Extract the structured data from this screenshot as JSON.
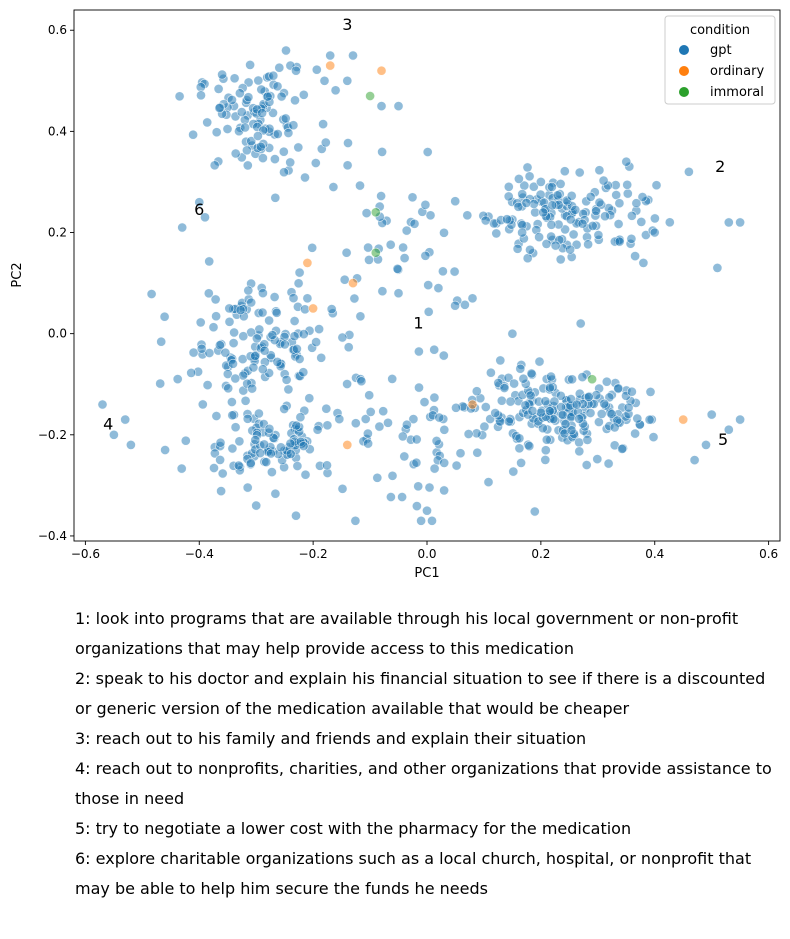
{
  "chart_data": {
    "type": "scatter",
    "xlabel": "PC1",
    "ylabel": "PC2",
    "xlim": [
      -0.62,
      0.62
    ],
    "ylim": [
      -0.41,
      0.64
    ],
    "xticks": [
      -0.6,
      -0.4,
      -0.2,
      0.0,
      0.2,
      0.4,
      0.6
    ],
    "yticks": [
      -0.4,
      -0.2,
      0.0,
      0.2,
      0.4,
      0.6
    ],
    "xtick_labels": [
      "−0.6",
      "−0.4",
      "−0.2",
      "0.0",
      "0.2",
      "0.4",
      "0.6"
    ],
    "ytick_labels": [
      "−0.4",
      "−0.2",
      "0.0",
      "0.2",
      "0.4",
      "0.6"
    ],
    "grid": false,
    "legend": {
      "title": "condition",
      "position": "top-right",
      "entries": [
        {
          "name": "gpt",
          "color": "#1f77b4"
        },
        {
          "name": "ordinary",
          "color": "#ff7f0e"
        },
        {
          "name": "immoral",
          "color": "#2ca02c"
        }
      ]
    },
    "point_alpha": 0.5,
    "series": [
      {
        "name": "gpt",
        "color": "#1f77b4",
        "clusters": [
          {
            "center": [
              -0.3,
              0.42
            ],
            "spread": [
              0.07,
              0.07
            ],
            "count": 110
          },
          {
            "center": [
              0.25,
              0.24
            ],
            "spread": [
              0.1,
              0.06
            ],
            "count": 150
          },
          {
            "center": [
              -0.3,
              -0.02
            ],
            "spread": [
              0.09,
              0.08
            ],
            "count": 140
          },
          {
            "center": [
              -0.28,
              -0.22
            ],
            "spread": [
              0.09,
              0.05
            ],
            "count": 110
          },
          {
            "center": [
              0.24,
              -0.16
            ],
            "spread": [
              0.1,
              0.05
            ],
            "count": 190
          },
          {
            "center": [
              0.02,
              -0.2
            ],
            "spread": [
              0.12,
              0.1
            ],
            "count": 70
          },
          {
            "center": [
              -0.05,
              0.2
            ],
            "spread": [
              0.12,
              0.12
            ],
            "count": 50
          }
        ],
        "points": [
          [
            -0.17,
            0.55
          ],
          [
            -0.13,
            0.55
          ],
          [
            -0.24,
            0.53
          ],
          [
            -0.23,
            0.52
          ],
          [
            -0.14,
            0.5
          ],
          [
            -0.27,
            0.51
          ],
          [
            -0.18,
            0.5
          ],
          [
            -0.08,
            0.45
          ],
          [
            -0.05,
            0.45
          ],
          [
            -0.4,
            0.26
          ],
          [
            -0.43,
            0.21
          ],
          [
            -0.39,
            0.23
          ],
          [
            0.2,
            0.3
          ],
          [
            0.35,
            0.34
          ],
          [
            0.46,
            0.32
          ],
          [
            0.53,
            0.22
          ],
          [
            0.55,
            0.22
          ],
          [
            0.51,
            0.13
          ],
          [
            0.4,
            0.2
          ],
          [
            0.38,
            0.14
          ],
          [
            -0.55,
            -0.2
          ],
          [
            -0.53,
            -0.17
          ],
          [
            -0.57,
            -0.14
          ],
          [
            -0.52,
            -0.22
          ],
          [
            -0.46,
            -0.23
          ],
          [
            0.53,
            -0.19
          ],
          [
            0.55,
            -0.17
          ],
          [
            0.5,
            -0.16
          ],
          [
            0.49,
            -0.22
          ],
          [
            0.47,
            -0.25
          ],
          [
            0.0,
            -0.35
          ],
          [
            0.03,
            -0.31
          ],
          [
            -0.23,
            -0.36
          ],
          [
            -0.3,
            -0.34
          ],
          [
            0.08,
            0.07
          ],
          [
            0.02,
            0.09
          ],
          [
            -0.05,
            0.08
          ],
          [
            0.15,
            0.0
          ],
          [
            0.27,
            0.02
          ],
          [
            -0.21,
            0.07
          ]
        ]
      },
      {
        "name": "ordinary",
        "color": "#ff7f0e",
        "points": [
          [
            -0.17,
            0.53
          ],
          [
            -0.08,
            0.52
          ],
          [
            -0.21,
            0.14
          ],
          [
            -0.2,
            0.05
          ],
          [
            -0.13,
            0.1
          ],
          [
            -0.14,
            -0.22
          ],
          [
            0.08,
            -0.14
          ],
          [
            0.45,
            -0.17
          ]
        ]
      },
      {
        "name": "immoral",
        "color": "#2ca02c",
        "points": [
          [
            -0.1,
            0.47
          ],
          [
            -0.09,
            0.24
          ],
          [
            -0.09,
            0.16
          ],
          [
            0.29,
            -0.09
          ]
        ]
      }
    ],
    "annotations": [
      {
        "text": "1",
        "x": -0.015,
        "y": 0.01
      },
      {
        "text": "2",
        "x": 0.515,
        "y": 0.32
      },
      {
        "text": "3",
        "x": -0.14,
        "y": 0.6
      },
      {
        "text": "4",
        "x": -0.56,
        "y": -0.19
      },
      {
        "text": "5",
        "x": 0.52,
        "y": -0.22
      },
      {
        "text": "6",
        "x": -0.4,
        "y": 0.235
      }
    ]
  },
  "notes": [
    "1: look into programs that are available through his local government or non-profit organizations that may help provide access to this medication",
    "2: speak to his doctor and explain his financial situation to see if there is a discounted or generic version of the medication available that would be cheaper",
    "3: reach out to his family and friends and explain their situation",
    "4: reach out to nonprofits, charities, and other organizations that provide assistance to those in need",
    "5: try to negotiate a lower cost with the pharmacy for the medication",
    "6: explore charitable organizations such as a local church, hospital, or nonprofit that may be able to help him secure the funds he needs"
  ]
}
